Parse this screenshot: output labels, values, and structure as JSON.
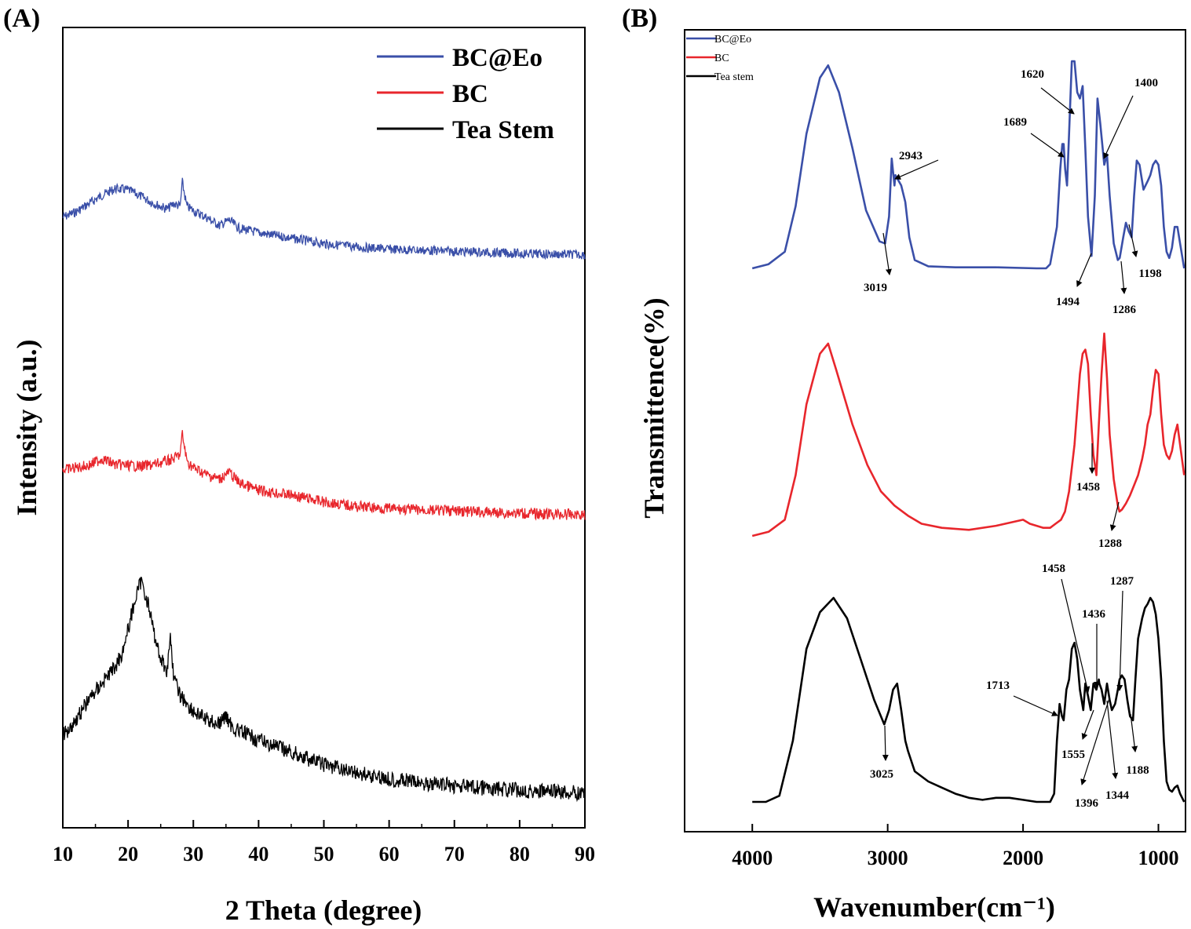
{
  "chart_data": [
    {
      "panel": "(A)",
      "type": "line",
      "xlabel": "2 Theta (degree)",
      "ylabel": "Intensity (a.u.)",
      "xlim": [
        10,
        90
      ],
      "xticks": [
        10,
        20,
        30,
        40,
        50,
        60,
        70,
        80,
        90
      ],
      "grid": false,
      "yticks_shown": false,
      "legend_position": "top-right",
      "series": [
        {
          "name": "BC@Eo",
          "color": "#3a4fa8",
          "x": [
            10,
            12,
            14,
            16,
            18,
            20,
            22,
            24,
            26,
            27,
            28,
            28.3,
            29,
            30,
            32,
            34,
            35.5,
            37,
            40,
            45,
            50,
            55,
            60,
            65,
            70,
            75,
            80,
            85,
            90
          ],
          "y": [
            0.3,
            0.4,
            0.55,
            0.7,
            0.82,
            0.8,
            0.68,
            0.55,
            0.45,
            0.55,
            0.5,
            0.95,
            0.5,
            0.42,
            0.3,
            0.15,
            0.25,
            0.1,
            0.02,
            -0.08,
            -0.18,
            -0.24,
            -0.28,
            -0.3,
            -0.32,
            -0.34,
            -0.36,
            -0.37,
            -0.38
          ]
        },
        {
          "name": "BC",
          "color": "#e8262c",
          "x": [
            10,
            12,
            14,
            16,
            18,
            20,
            22,
            24,
            26,
            27,
            28,
            28.3,
            29,
            30,
            32,
            34,
            35.5,
            37,
            40,
            45,
            50,
            55,
            60,
            65,
            70,
            75,
            80,
            85,
            90
          ],
          "y": [
            0.5,
            0.55,
            0.6,
            0.75,
            0.62,
            0.6,
            0.58,
            0.62,
            0.7,
            0.75,
            0.85,
            1.3,
            0.7,
            0.55,
            0.4,
            0.3,
            0.45,
            0.22,
            0.05,
            -0.05,
            -0.2,
            -0.3,
            -0.35,
            -0.38,
            -0.4,
            -0.43,
            -0.45,
            -0.47,
            -0.48
          ]
        },
        {
          "name": "Tea Stem",
          "color": "#000000",
          "x": [
            10,
            12,
            14,
            16,
            18,
            19,
            20,
            21,
            22,
            23,
            24,
            25,
            26,
            26.5,
            27,
            28,
            30,
            32,
            34,
            35,
            36,
            40,
            45,
            50,
            55,
            60,
            65,
            70,
            75,
            80,
            85,
            90
          ],
          "y": [
            1.0,
            1.4,
            1.9,
            2.3,
            2.7,
            3.0,
            3.6,
            4.3,
            4.8,
            4.3,
            3.5,
            2.9,
            2.6,
            3.5,
            2.4,
            2.0,
            1.6,
            1.4,
            1.3,
            1.5,
            1.2,
            0.9,
            0.6,
            0.3,
            0.1,
            -0.05,
            -0.15,
            -0.22,
            -0.28,
            -0.33,
            -0.37,
            -0.4
          ]
        }
      ]
    },
    {
      "panel": "(B)",
      "type": "line",
      "xlabel": "Wavenumber(cm⁻¹)",
      "ylabel": "Transmittence(%)",
      "xlim": [
        4500,
        800
      ],
      "xticks": [
        4000,
        3000,
        2000,
        1000
      ],
      "grid": false,
      "yticks_shown": false,
      "legend_position": "top-left",
      "series": [
        {
          "name": "BC@Eo",
          "color": "#3a4fa8",
          "x": [
            4000,
            3880,
            3760,
            3680,
            3600,
            3500,
            3440,
            3360,
            3260,
            3160,
            3060,
            3019,
            2990,
            2970,
            2950,
            2943,
            2900,
            2870,
            2840,
            2800,
            2700,
            2500,
            2200,
            1900,
            1830,
            1800,
            1750,
            1725,
            1710,
            1700,
            1689,
            1675,
            1660,
            1640,
            1620,
            1600,
            1580,
            1560,
            1540,
            1520,
            1494,
            1470,
            1450,
            1430,
            1400,
            1380,
            1360,
            1330,
            1300,
            1286,
            1260,
            1240,
            1220,
            1198,
            1180,
            1160,
            1140,
            1110,
            1080,
            1060,
            1040,
            1020,
            1000,
            980,
            960,
            940,
            920,
            900,
            880,
            860,
            840,
            810
          ],
          "y": [
            0,
            0.02,
            0.08,
            0.3,
            0.65,
            0.92,
            0.98,
            0.85,
            0.58,
            0.28,
            0.13,
            0.12,
            0.25,
            0.53,
            0.4,
            0.45,
            0.4,
            0.32,
            0.15,
            0.04,
            0.01,
            0.005,
            0.005,
            0.0,
            0.0,
            0.02,
            0.2,
            0.48,
            0.6,
            0.6,
            0.48,
            0.4,
            0.65,
            1.0,
            1.0,
            0.85,
            0.82,
            0.88,
            0.58,
            0.25,
            0.06,
            0.35,
            0.82,
            0.7,
            0.5,
            0.55,
            0.35,
            0.12,
            0.04,
            0.05,
            0.15,
            0.22,
            0.18,
            0.15,
            0.35,
            0.52,
            0.5,
            0.38,
            0.42,
            0.45,
            0.5,
            0.52,
            0.5,
            0.4,
            0.2,
            0.08,
            0.05,
            0.1,
            0.2,
            0.2,
            0.12,
            0.0
          ]
        },
        {
          "name": "BC",
          "color": "#e8262c",
          "x": [
            4000,
            3880,
            3760,
            3680,
            3600,
            3500,
            3440,
            3380,
            3260,
            3150,
            3050,
            2950,
            2850,
            2750,
            2600,
            2400,
            2200,
            2000,
            1950,
            1900,
            1850,
            1800,
            1760,
            1720,
            1690,
            1660,
            1620,
            1580,
            1560,
            1540,
            1520,
            1500,
            1480,
            1458,
            1440,
            1420,
            1400,
            1380,
            1360,
            1330,
            1300,
            1288,
            1270,
            1240,
            1210,
            1180,
            1150,
            1120,
            1100,
            1080,
            1060,
            1040,
            1020,
            1000,
            980,
            960,
            940,
            920,
            900,
            880,
            860,
            840,
            810
          ],
          "y": [
            0,
            0.02,
            0.08,
            0.3,
            0.65,
            0.9,
            0.95,
            0.82,
            0.55,
            0.35,
            0.22,
            0.15,
            0.1,
            0.06,
            0.04,
            0.03,
            0.05,
            0.08,
            0.06,
            0.05,
            0.04,
            0.04,
            0.06,
            0.08,
            0.12,
            0.22,
            0.45,
            0.8,
            0.9,
            0.92,
            0.85,
            0.6,
            0.4,
            0.3,
            0.55,
            0.8,
            1.0,
            0.78,
            0.5,
            0.28,
            0.15,
            0.12,
            0.13,
            0.16,
            0.2,
            0.25,
            0.3,
            0.38,
            0.45,
            0.55,
            0.6,
            0.72,
            0.82,
            0.8,
            0.6,
            0.45,
            0.4,
            0.38,
            0.42,
            0.5,
            0.55,
            0.45,
            0.3
          ]
        },
        {
          "name": "Tea stem",
          "color": "#000000",
          "x": [
            4000,
            3900,
            3800,
            3700,
            3600,
            3500,
            3400,
            3300,
            3200,
            3100,
            3025,
            2990,
            2960,
            2930,
            2900,
            2870,
            2850,
            2800,
            2700,
            2600,
            2500,
            2400,
            2300,
            2200,
            2100,
            2000,
            1900,
            1800,
            1770,
            1750,
            1730,
            1713,
            1700,
            1680,
            1660,
            1640,
            1620,
            1600,
            1580,
            1555,
            1540,
            1520,
            1500,
            1480,
            1458,
            1440,
            1436,
            1420,
            1400,
            1396,
            1380,
            1360,
            1344,
            1320,
            1300,
            1287,
            1270,
            1250,
            1230,
            1210,
            1188,
            1170,
            1150,
            1120,
            1100,
            1080,
            1060,
            1040,
            1020,
            1000,
            980,
            960,
            940,
            920,
            900,
            880,
            860,
            840,
            810
          ],
          "y": [
            0,
            0.0,
            0.03,
            0.3,
            0.75,
            0.93,
            1.0,
            0.9,
            0.7,
            0.5,
            0.38,
            0.45,
            0.55,
            0.58,
            0.45,
            0.3,
            0.25,
            0.15,
            0.1,
            0.07,
            0.04,
            0.02,
            0.01,
            0.02,
            0.02,
            0.01,
            0.0,
            0.0,
            0.04,
            0.3,
            0.48,
            0.42,
            0.4,
            0.55,
            0.6,
            0.75,
            0.78,
            0.7,
            0.55,
            0.45,
            0.58,
            0.52,
            0.45,
            0.58,
            0.55,
            0.6,
            0.58,
            0.55,
            0.48,
            0.5,
            0.58,
            0.5,
            0.45,
            0.48,
            0.55,
            0.6,
            0.62,
            0.6,
            0.5,
            0.42,
            0.4,
            0.6,
            0.8,
            0.9,
            0.95,
            0.97,
            1.0,
            0.98,
            0.92,
            0.8,
            0.6,
            0.3,
            0.1,
            0.06,
            0.05,
            0.07,
            0.08,
            0.04,
            0.0
          ]
        }
      ],
      "annotations": [
        {
          "text": "2943",
          "series": "BC@Eo"
        },
        {
          "text": "3019",
          "series": "BC@Eo"
        },
        {
          "text": "1620",
          "series": "BC@Eo"
        },
        {
          "text": "1689",
          "series": "BC@Eo"
        },
        {
          "text": "1400",
          "series": "BC@Eo"
        },
        {
          "text": "1494",
          "series": "BC@Eo"
        },
        {
          "text": "1286",
          "series": "BC@Eo"
        },
        {
          "text": "1198",
          "series": "BC@Eo"
        },
        {
          "text": "1458",
          "series": "BC"
        },
        {
          "text": "1288",
          "series": "BC"
        },
        {
          "text": "1458",
          "series": "Tea stem"
        },
        {
          "text": "1436",
          "series": "Tea stem"
        },
        {
          "text": "1287",
          "series": "Tea stem"
        },
        {
          "text": "1713",
          "series": "Tea stem"
        },
        {
          "text": "3025",
          "series": "Tea stem"
        },
        {
          "text": "1555",
          "series": "Tea stem"
        },
        {
          "text": "1396",
          "series": "Tea stem"
        },
        {
          "text": "1344",
          "series": "Tea stem"
        },
        {
          "text": "1188",
          "series": "Tea stem"
        }
      ]
    }
  ]
}
